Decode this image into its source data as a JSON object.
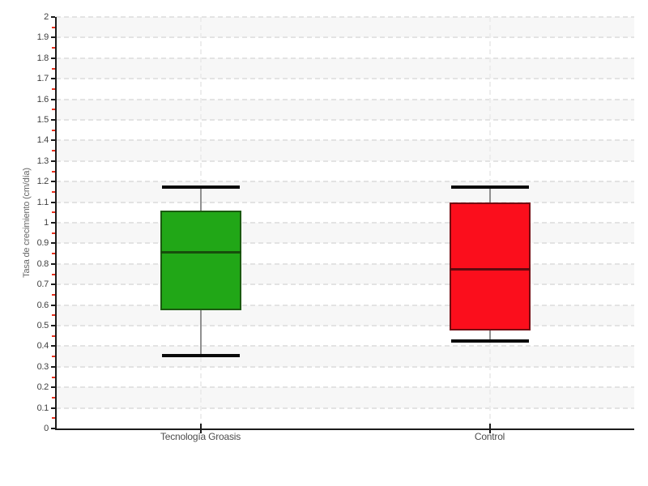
{
  "chart_data": {
    "type": "boxplot",
    "title": "",
    "xlabel": "",
    "ylabel": "Tasa de crecimiento (cm/día)",
    "ylim": [
      0,
      2
    ],
    "y_major_step": 0.1,
    "y_minor_step": 0.05,
    "grid": {
      "horizontal_gridlines": "dashed",
      "vertical_gridlines_at_categories": "dashed",
      "alternating_horizontal_bands": true
    },
    "categories": [
      "Tecnología Groasis",
      "Control"
    ],
    "series": [
      {
        "name": "Tecnología Groasis",
        "whisker_low": 0.355,
        "q1": 0.575,
        "median": 0.86,
        "q3": 1.06,
        "whisker_high": 1.175,
        "fill_color": "#21a717",
        "edge_color": "#1b5a10",
        "median_color": "#174e0c"
      },
      {
        "name": "Control",
        "whisker_low": 0.425,
        "q1": 0.475,
        "median": 0.775,
        "q3": 1.1,
        "whisker_high": 1.175,
        "fill_color": "#fb0e1c",
        "edge_color": "#730c12",
        "median_color": "#600a10"
      }
    ],
    "colors": {
      "band": "#f7f7f7",
      "band_alt": "#ffffff",
      "h_grid": "#e3e3e3",
      "v_grid": "#ededed",
      "axis": "#1c1c1c",
      "major_tick": "#1c1c1c",
      "minor_tick": "#e8311e",
      "tick_label": "#3f3f3f",
      "axis_title": "#666666",
      "whisker_stem": "#909090",
      "whisker_cap": "#0a0a0a",
      "background": "#ffffff"
    }
  }
}
